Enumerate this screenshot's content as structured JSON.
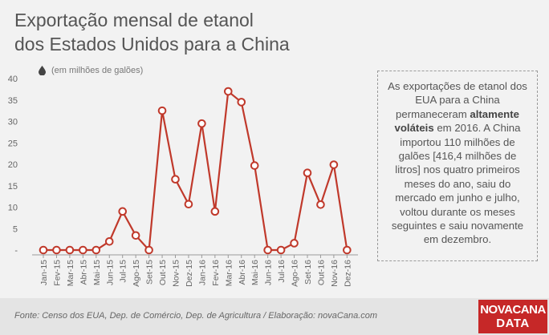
{
  "title": {
    "line1": "Exportação mensal de etanol",
    "line2": "dos Estados Unidos para a China"
  },
  "unit_label": "(em milhões de galões)",
  "icons": {
    "unit": "drop-icon"
  },
  "colors": {
    "series": "#c0392b",
    "marker_fill": "#ffffff",
    "axis": "#999999"
  },
  "note": {
    "part1": "As exportações de etanol dos EUA para a China permaneceram ",
    "bold": "altamente voláteis",
    "part2": " em 2016. A China importou 110 milhões de galões [416,4 milhões de litros] nos quatro primeiros meses do ano, saiu do mercado em junho e julho, voltou durante os meses seguintes e saiu novamente em dezembro."
  },
  "source": "Fonte: Censo dos EUA, Dep. de Comércio, Dep. de Agricultura / Elaboração: novaCana.com",
  "logo": {
    "line1": "NOVACANA",
    "line2": "DATA"
  },
  "chart_data": {
    "type": "line",
    "categories": [
      "Jan-15",
      "Fev-15",
      "Mar-15",
      "Abr-15",
      "Mai-15",
      "Jun-15",
      "Jul-15",
      "Ago-15",
      "Set-15",
      "Out-15",
      "Nov-15",
      "Dez-15",
      "Jan-16",
      "Fev-16",
      "Mar-16",
      "Abr-16",
      "Mai-16",
      "Jun-16",
      "Jul-16",
      "Ago-16",
      "Set-16",
      "Out-16",
      "Nov-16",
      "Dez-16"
    ],
    "series": [
      {
        "values": [
          0,
          0,
          0,
          0,
          0,
          2,
          9,
          3.4,
          0,
          32.5,
          16.5,
          10.7,
          29.5,
          9,
          37,
          34.5,
          19.7,
          0,
          0,
          1.6,
          18,
          10.6,
          19.9,
          0
        ]
      }
    ],
    "ylim": [
      0,
      40
    ],
    "yticks": [
      0,
      5,
      10,
      15,
      20,
      25,
      30,
      35,
      40
    ],
    "ytick_labels": [
      "-",
      "5",
      "10",
      "15",
      "20",
      "25",
      "30",
      "35",
      "40"
    ],
    "grid": false
  }
}
